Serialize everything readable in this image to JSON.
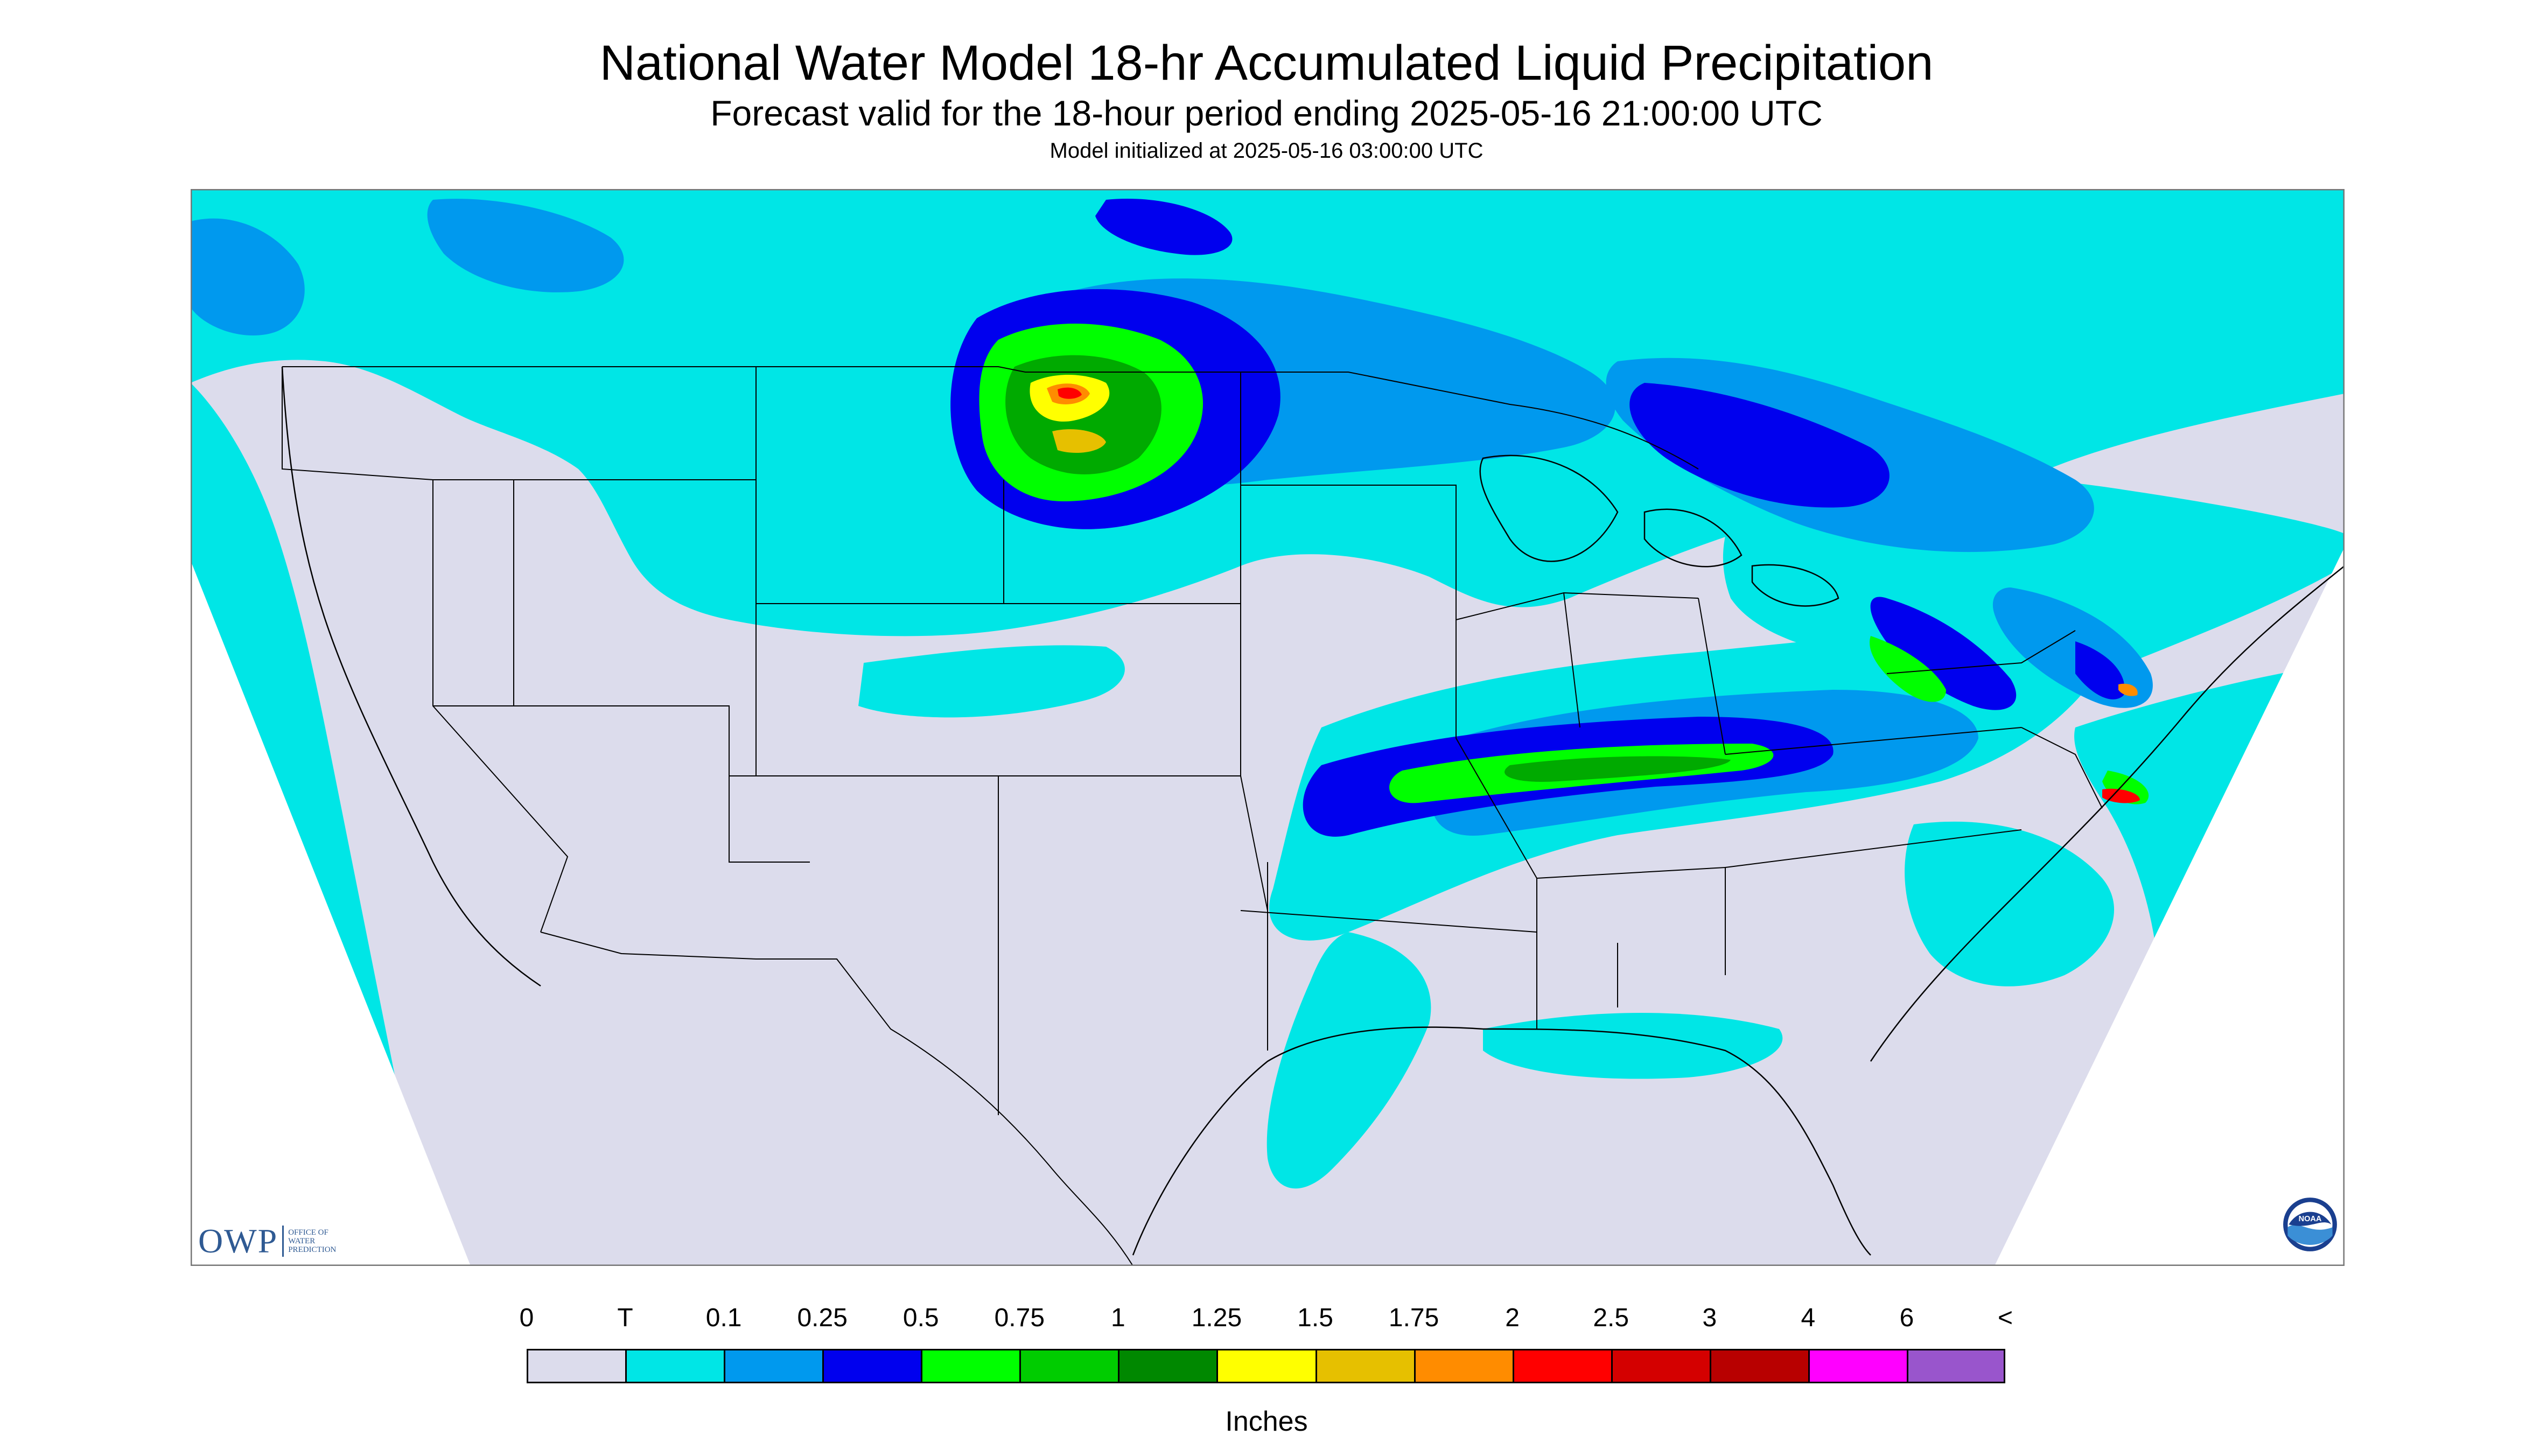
{
  "header": {
    "title": "National Water Model 18-hr Accumulated Liquid Precipitation",
    "subtitle": "Forecast valid for the 18-hour period ending 2025-05-16 21:00:00 UTC",
    "init_line": "Model initialized at 2025-05-16 03:00:00 UTC"
  },
  "legend": {
    "units": "Inches",
    "ticks": [
      "0",
      "T",
      "0.1",
      "0.25",
      "0.5",
      "0.75",
      "1",
      "1.25",
      "1.5",
      "1.75",
      "2",
      "2.5",
      "3",
      "4",
      "6",
      "<"
    ],
    "colors": [
      "#dcdcec",
      "#00e6e6",
      "#0099ee",
      "#0000ee",
      "#00ff00",
      "#00cc00",
      "#008800",
      "#ffff00",
      "#e6c000",
      "#ff8c00",
      "#ff0000",
      "#d40000",
      "#b80000",
      "#ff00ff",
      "#9955cc"
    ]
  },
  "map": {
    "background_color": "#dcdcec",
    "outside_color": "#ffffff",
    "regions_shown": "Contiguous United States, southern Canada, northern Mexico"
  },
  "logos": {
    "owp_text": "OWP",
    "owp_small_lines": [
      "OFFICE OF",
      "WATER",
      "PREDICTION"
    ],
    "noaa_text": "NOAA"
  }
}
